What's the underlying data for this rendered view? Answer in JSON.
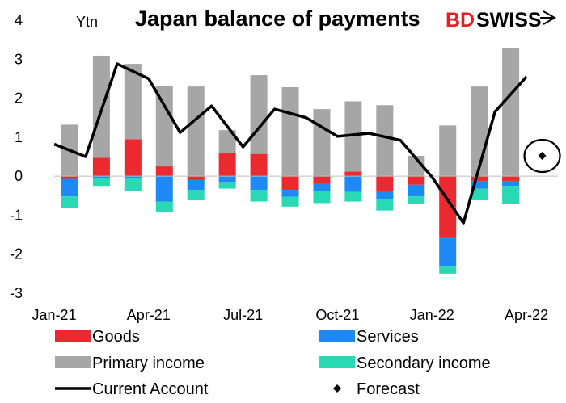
{
  "chart_data": {
    "type": "bar",
    "title": "Japan balance of payments",
    "unit_label": "Ytn",
    "brand": {
      "part1": "BD",
      "part2": "SWISS",
      "color1": "#e31e24",
      "color2": "#000000"
    },
    "categories": [
      "Jan-21",
      "Feb-21",
      "Mar-21",
      "Apr-21",
      "May-21",
      "Jun-21",
      "Jul-21",
      "Aug-21",
      "Sep-21",
      "Oct-21",
      "Nov-21",
      "Dec-21",
      "Jan-22",
      "Feb-22",
      "Mar-22",
      "Apr-22"
    ],
    "x_tick_labels": [
      "Jan-21",
      "Apr-21",
      "Jul-21",
      "Oct-21",
      "Jan-22",
      "Apr-22"
    ],
    "ylim": [
      -3,
      4
    ],
    "y_ticks": [
      "-3",
      "-2",
      "-1",
      "0",
      "1",
      "2",
      "3",
      "4"
    ],
    "series": [
      {
        "name": "Goods",
        "color": "#ea2a2f",
        "values": [
          -0.07,
          0.47,
          0.95,
          0.25,
          -0.1,
          0.6,
          0.57,
          -0.35,
          -0.17,
          0.12,
          -0.38,
          -0.22,
          -1.57,
          -0.12,
          -0.12,
          null
        ]
      },
      {
        "name": "Services",
        "color": "#1e88f5",
        "values": [
          -0.45,
          -0.05,
          -0.05,
          -0.65,
          -0.25,
          -0.15,
          -0.35,
          -0.18,
          -0.22,
          -0.4,
          -0.2,
          -0.3,
          -0.73,
          -0.2,
          -0.13,
          null
        ]
      },
      {
        "name": "Primary income",
        "color": "#a6a6a6",
        "values": [
          1.32,
          2.62,
          1.93,
          2.06,
          2.3,
          0.58,
          2.02,
          2.28,
          1.72,
          1.8,
          1.82,
          0.52,
          1.3,
          2.3,
          3.28,
          null
        ]
      },
      {
        "name": "Secondary income",
        "color": "#29d9b3",
        "values": [
          -0.3,
          -0.2,
          -0.33,
          -0.27,
          -0.27,
          -0.17,
          -0.3,
          -0.25,
          -0.3,
          -0.25,
          -0.3,
          -0.2,
          -0.2,
          -0.3,
          -0.47,
          null
        ]
      }
    ],
    "current_account": {
      "name": "Current Account",
      "color": "#000000",
      "values": [
        0.82,
        0.5,
        2.88,
        2.5,
        1.12,
        1.8,
        0.75,
        1.72,
        1.5,
        1.02,
        1.1,
        0.92,
        -0.02,
        -1.2,
        1.65,
        2.55
      ]
    },
    "forecast": {
      "name": "Forecast",
      "category": "Apr-22",
      "value": 0.52
    },
    "legend": [
      {
        "label": "Goods",
        "kind": "box",
        "color": "#ea2a2f"
      },
      {
        "label": "Services",
        "kind": "box",
        "color": "#1e88f5"
      },
      {
        "label": "Primary income",
        "kind": "box",
        "color": "#a6a6a6"
      },
      {
        "label": "Secondary income",
        "kind": "box",
        "color": "#29d9b3"
      },
      {
        "label": "Current Account",
        "kind": "line",
        "color": "#000000"
      },
      {
        "label": "Forecast",
        "kind": "diamond",
        "color": "#000000"
      }
    ],
    "legend_placement": "bottom",
    "grid": false
  }
}
